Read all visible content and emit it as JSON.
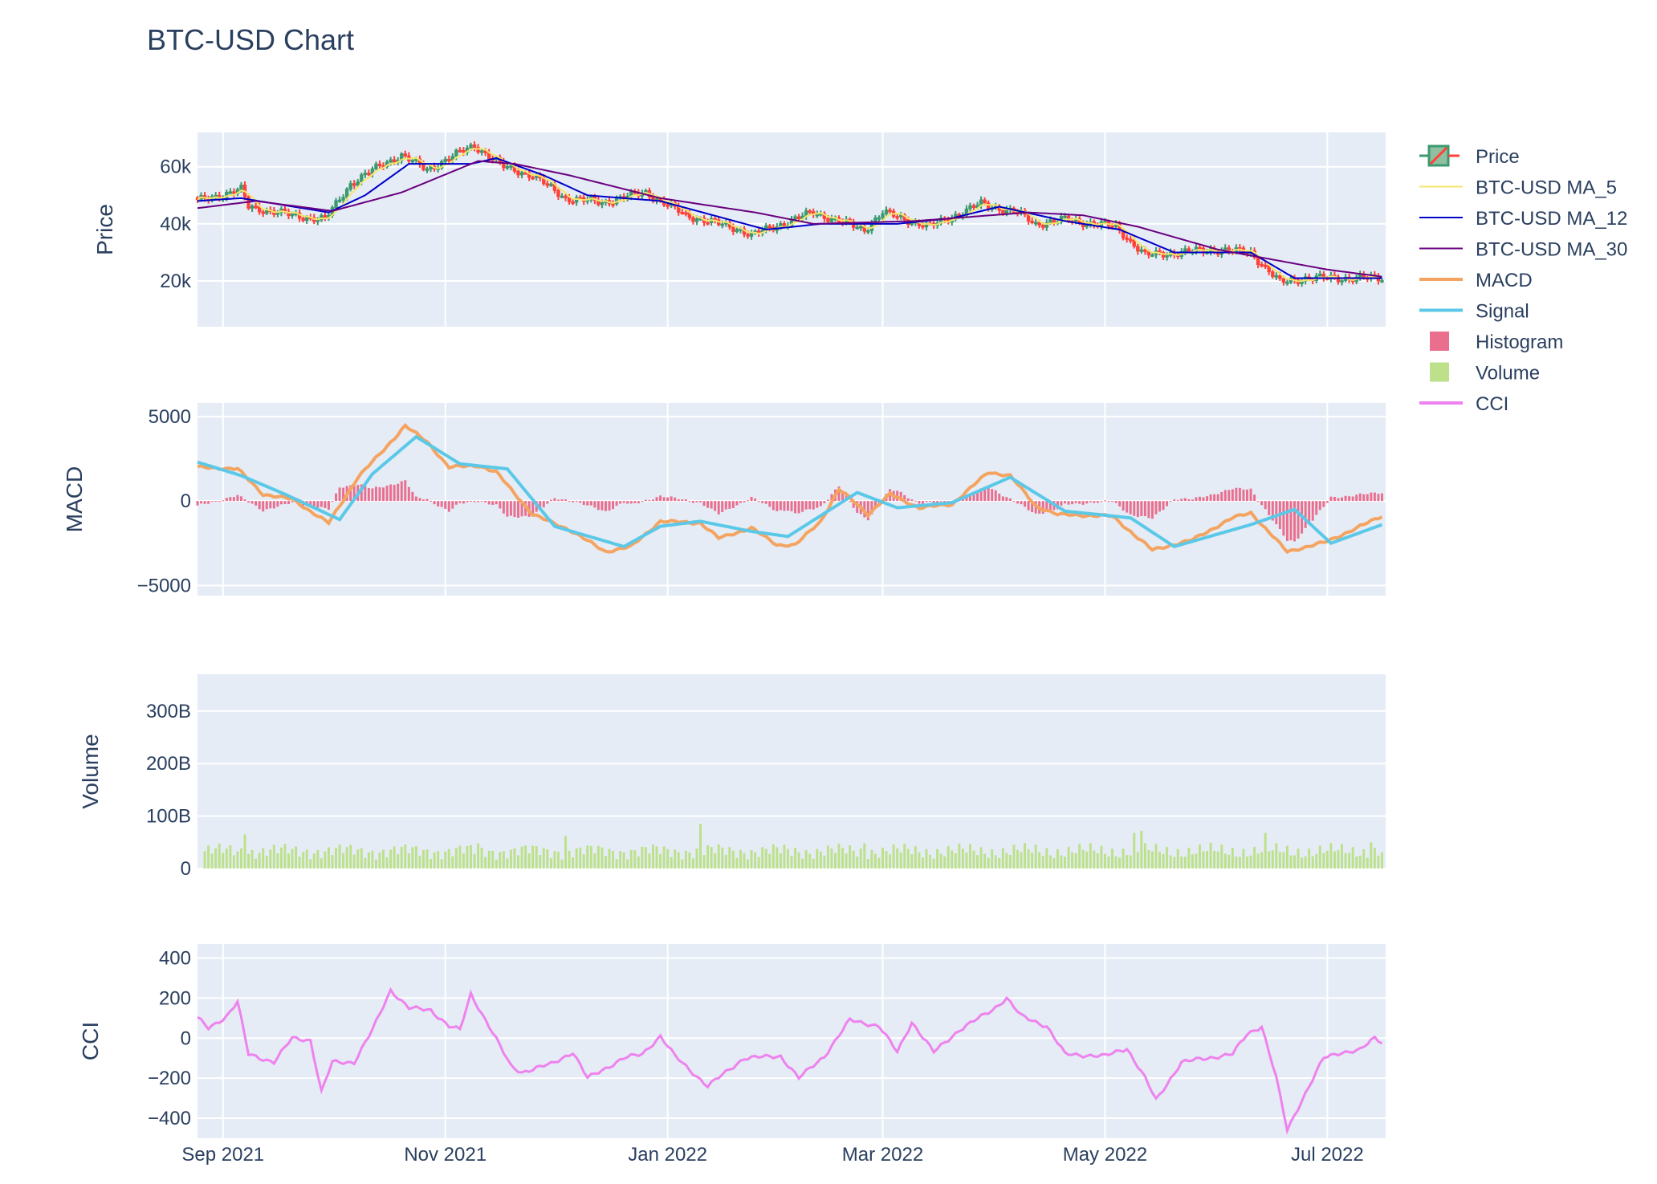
{
  "title": "BTC-USD Chart",
  "legend": {
    "position": "top-right",
    "items": [
      {
        "label": "Price",
        "kind": "candlestick",
        "color_up": "#3d9970",
        "color_down": "#ff4136"
      },
      {
        "label": "BTC-USD MA_5",
        "kind": "line",
        "color": "#f5e66b"
      },
      {
        "label": "BTC-USD MA_12",
        "kind": "line",
        "color": "#0000c8"
      },
      {
        "label": "BTC-USD MA_30",
        "kind": "line",
        "color": "#6a0080"
      },
      {
        "label": "MACD",
        "kind": "line",
        "color": "#f4a460"
      },
      {
        "label": "Signal",
        "kind": "line",
        "color": "#5bc8e8"
      },
      {
        "label": "Histogram",
        "kind": "bar",
        "color": "#ea6f8f"
      },
      {
        "label": "Volume",
        "kind": "bar",
        "color": "#bde18a"
      },
      {
        "label": "CCI",
        "kind": "line",
        "color": "#ee82ee"
      }
    ]
  },
  "chart_data": {
    "type": "line",
    "x_type": "date",
    "x_range": [
      "2021-08-25",
      "2022-07-17"
    ],
    "x_ticks": [
      {
        "date": "2021-09-01",
        "label": "Sep 2021"
      },
      {
        "date": "2021-11-01",
        "label": "Nov 2021"
      },
      {
        "date": "2022-01-01",
        "label": "Jan 2022"
      },
      {
        "date": "2022-03-01",
        "label": "Mar 2022"
      },
      {
        "date": "2022-05-01",
        "label": "May 2022"
      },
      {
        "date": "2022-07-01",
        "label": "Jul 2022"
      }
    ],
    "grid": true,
    "panels": [
      {
        "name": "price",
        "ylabel": "Price",
        "ylim": [
          4000,
          72000
        ],
        "y_ticks": [
          {
            "v": 20000,
            "label": "20k"
          },
          {
            "v": 40000,
            "label": "40k"
          },
          {
            "v": 60000,
            "label": "60k"
          }
        ],
        "price_keypoints": [
          [
            "2021-08-25",
            48000
          ],
          [
            "2021-09-06",
            52000
          ],
          [
            "2021-09-08",
            46000
          ],
          [
            "2021-09-20",
            43000
          ],
          [
            "2021-09-29",
            41500
          ],
          [
            "2021-10-06",
            54000
          ],
          [
            "2021-10-15",
            61000
          ],
          [
            "2021-10-20",
            64000
          ],
          [
            "2021-10-27",
            59000
          ],
          [
            "2021-11-09",
            67500
          ],
          [
            "2021-11-17",
            60000
          ],
          [
            "2021-11-25",
            57000
          ],
          [
            "2021-12-04",
            49000
          ],
          [
            "2021-12-14",
            47500
          ],
          [
            "2021-12-26",
            51000
          ],
          [
            "2022-01-06",
            43000
          ],
          [
            "2022-01-21",
            38000
          ],
          [
            "2022-01-24",
            36000
          ],
          [
            "2022-02-10",
            44000
          ],
          [
            "2022-02-24",
            38000
          ],
          [
            "2022-03-01",
            44000
          ],
          [
            "2022-03-14",
            39000
          ],
          [
            "2022-03-28",
            47000
          ],
          [
            "2022-04-07",
            44000
          ],
          [
            "2022-04-12",
            40000
          ],
          [
            "2022-04-20",
            41500
          ],
          [
            "2022-05-04",
            39000
          ],
          [
            "2022-05-12",
            29000
          ],
          [
            "2022-05-31",
            31000
          ],
          [
            "2022-06-10",
            30000
          ],
          [
            "2022-06-18",
            19500
          ],
          [
            "2022-06-25",
            21000
          ],
          [
            "2022-07-16",
            21000
          ]
        ],
        "ma12_keypoints": [
          [
            "2021-08-25",
            48000
          ],
          [
            "2021-09-06",
            49000
          ],
          [
            "2021-09-30",
            44000
          ],
          [
            "2021-10-10",
            50000
          ],
          [
            "2021-10-22",
            61000
          ],
          [
            "2021-11-08",
            61000
          ],
          [
            "2021-11-15",
            63000
          ],
          [
            "2021-11-28",
            57000
          ],
          [
            "2021-12-10",
            50000
          ],
          [
            "2021-12-30",
            48000
          ],
          [
            "2022-01-28",
            38000
          ],
          [
            "2022-02-12",
            40000
          ],
          [
            "2022-02-25",
            40000
          ],
          [
            "2022-03-05",
            40000
          ],
          [
            "2022-03-20",
            42000
          ],
          [
            "2022-04-02",
            46000
          ],
          [
            "2022-04-20",
            41000
          ],
          [
            "2022-05-05",
            38000
          ],
          [
            "2022-05-20",
            30000
          ],
          [
            "2022-06-10",
            30000
          ],
          [
            "2022-06-22",
            21000
          ],
          [
            "2022-07-16",
            21000
          ]
        ],
        "ma30_keypoints": [
          [
            "2021-08-25",
            45500
          ],
          [
            "2021-09-10",
            48000
          ],
          [
            "2021-10-01",
            44500
          ],
          [
            "2021-10-20",
            51000
          ],
          [
            "2021-11-10",
            62000
          ],
          [
            "2021-11-20",
            61000
          ],
          [
            "2021-12-05",
            57000
          ],
          [
            "2021-12-30",
            49000
          ],
          [
            "2022-01-25",
            44000
          ],
          [
            "2022-02-10",
            40000
          ],
          [
            "2022-03-10",
            41000
          ],
          [
            "2022-04-10",
            44000
          ],
          [
            "2022-04-25",
            43000
          ],
          [
            "2022-05-10",
            39000
          ],
          [
            "2022-06-01",
            31000
          ],
          [
            "2022-07-01",
            24000
          ],
          [
            "2022-07-16",
            21500
          ]
        ]
      },
      {
        "name": "macd",
        "ylabel": "MACD",
        "ylim": [
          -5600,
          5800
        ],
        "y_ticks": [
          {
            "v": 5000,
            "label": "5000"
          },
          {
            "v": 0,
            "label": "0"
          },
          {
            "v": -5000,
            "label": "−5000"
          }
        ],
        "macd_keypoints": [
          [
            "2021-08-25",
            2000
          ],
          [
            "2021-09-05",
            1900
          ],
          [
            "2021-09-12",
            400
          ],
          [
            "2021-09-20",
            100
          ],
          [
            "2021-09-30",
            -1300
          ],
          [
            "2021-10-08",
            1400
          ],
          [
            "2021-10-15",
            3000
          ],
          [
            "2021-10-21",
            4450
          ],
          [
            "2021-10-27",
            3500
          ],
          [
            "2021-11-02",
            2000
          ],
          [
            "2021-11-10",
            2100
          ],
          [
            "2021-11-15",
            1700
          ],
          [
            "2021-11-25",
            -800
          ],
          [
            "2021-12-05",
            -1700
          ],
          [
            "2021-12-15",
            -3000
          ],
          [
            "2021-12-22",
            -2700
          ],
          [
            "2021-12-30",
            -1200
          ],
          [
            "2022-01-10",
            -1300
          ],
          [
            "2022-01-15",
            -2200
          ],
          [
            "2022-01-24",
            -1600
          ],
          [
            "2022-01-31",
            -2600
          ],
          [
            "2022-02-05",
            -2600
          ],
          [
            "2022-02-12",
            -1200
          ],
          [
            "2022-02-17",
            700
          ],
          [
            "2022-02-22",
            -200
          ],
          [
            "2022-02-25",
            -800
          ],
          [
            "2022-03-03",
            400
          ],
          [
            "2022-03-11",
            -400
          ],
          [
            "2022-03-20",
            -200
          ],
          [
            "2022-03-30",
            1700
          ],
          [
            "2022-04-05",
            1500
          ],
          [
            "2022-04-12",
            -300
          ],
          [
            "2022-04-18",
            -800
          ],
          [
            "2022-05-03",
            -900
          ],
          [
            "2022-05-14",
            -2900
          ],
          [
            "2022-05-25",
            -2300
          ],
          [
            "2022-06-05",
            -1000
          ],
          [
            "2022-06-10",
            -700
          ],
          [
            "2022-06-20",
            -3000
          ],
          [
            "2022-07-01",
            -2400
          ],
          [
            "2022-07-16",
            -900
          ]
        ],
        "signal_keypoints": [
          [
            "2021-08-25",
            2300
          ],
          [
            "2021-09-06",
            1500
          ],
          [
            "2021-09-18",
            400
          ],
          [
            "2021-10-03",
            -1100
          ],
          [
            "2021-10-12",
            1600
          ],
          [
            "2021-10-24",
            3800
          ],
          [
            "2021-11-05",
            2200
          ],
          [
            "2021-11-18",
            1900
          ],
          [
            "2021-12-01",
            -1500
          ],
          [
            "2021-12-20",
            -2700
          ],
          [
            "2021-12-30",
            -1500
          ],
          [
            "2022-01-10",
            -1200
          ],
          [
            "2022-01-24",
            -1800
          ],
          [
            "2022-02-03",
            -2100
          ],
          [
            "2022-02-22",
            500
          ],
          [
            "2022-03-05",
            -400
          ],
          [
            "2022-03-20",
            -100
          ],
          [
            "2022-04-05",
            1400
          ],
          [
            "2022-04-20",
            -600
          ],
          [
            "2022-05-08",
            -1000
          ],
          [
            "2022-05-20",
            -2700
          ],
          [
            "2022-06-10",
            -1400
          ],
          [
            "2022-06-22",
            -500
          ],
          [
            "2022-07-02",
            -2500
          ],
          [
            "2022-07-16",
            -1400
          ]
        ]
      },
      {
        "name": "volume",
        "ylabel": "Volume",
        "ylim": [
          0,
          370
        ],
        "y_unit": "B",
        "y_ticks": [
          {
            "v": 0,
            "label": "0"
          },
          {
            "v": 100,
            "label": "100B"
          },
          {
            "v": 200,
            "label": "200B"
          },
          {
            "v": 300,
            "label": "300B"
          }
        ],
        "typical_volume": 33,
        "volume_spikes": [
          [
            "2021-09-07",
            65
          ],
          [
            "2021-11-10",
            48
          ],
          [
            "2021-12-04",
            62
          ],
          [
            "2022-01-10",
            85
          ],
          [
            "2022-02-24",
            48
          ],
          [
            "2022-05-09",
            68
          ],
          [
            "2022-05-11",
            72
          ],
          [
            "2022-06-14",
            68
          ],
          [
            "2022-07-13",
            50
          ]
        ]
      },
      {
        "name": "cci",
        "ylabel": "CCI",
        "ylim": [
          -500,
          470
        ],
        "y_ticks": [
          {
            "v": 400,
            "label": "400"
          },
          {
            "v": 200,
            "label": "200"
          },
          {
            "v": 0,
            "label": "0"
          },
          {
            "v": -200,
            "label": "−200"
          },
          {
            "v": -400,
            "label": "−400"
          }
        ],
        "cci_keypoints": [
          [
            "2021-08-25",
            100
          ],
          [
            "2021-08-28",
            50
          ],
          [
            "2021-09-02",
            110
          ],
          [
            "2021-09-05",
            180
          ],
          [
            "2021-09-08",
            -80
          ],
          [
            "2021-09-15",
            -120
          ],
          [
            "2021-09-20",
            0
          ],
          [
            "2021-09-25",
            -10
          ],
          [
            "2021-09-28",
            -270
          ],
          [
            "2021-10-01",
            -120
          ],
          [
            "2021-10-07",
            -120
          ],
          [
            "2021-10-12",
            40
          ],
          [
            "2021-10-17",
            240
          ],
          [
            "2021-10-22",
            150
          ],
          [
            "2021-10-28",
            140
          ],
          [
            "2021-11-02",
            60
          ],
          [
            "2021-11-05",
            40
          ],
          [
            "2021-11-08",
            220
          ],
          [
            "2021-11-13",
            60
          ],
          [
            "2021-11-19",
            -140
          ],
          [
            "2021-11-22",
            -170
          ],
          [
            "2021-11-30",
            -130
          ],
          [
            "2021-12-06",
            -70
          ],
          [
            "2021-12-10",
            -200
          ],
          [
            "2021-12-20",
            -100
          ],
          [
            "2021-12-25",
            -80
          ],
          [
            "2021-12-30",
            10
          ],
          [
            "2022-01-03",
            -90
          ],
          [
            "2022-01-12",
            -240
          ],
          [
            "2022-01-22",
            -100
          ],
          [
            "2022-02-01",
            -90
          ],
          [
            "2022-02-06",
            -200
          ],
          [
            "2022-02-13",
            -90
          ],
          [
            "2022-02-20",
            90
          ],
          [
            "2022-02-28",
            60
          ],
          [
            "2022-03-05",
            -70
          ],
          [
            "2022-03-09",
            80
          ],
          [
            "2022-03-15",
            -70
          ],
          [
            "2022-03-22",
            40
          ],
          [
            "2022-03-31",
            140
          ],
          [
            "2022-04-04",
            200
          ],
          [
            "2022-04-08",
            110
          ],
          [
            "2022-04-15",
            60
          ],
          [
            "2022-04-20",
            -80
          ],
          [
            "2022-05-01",
            -90
          ],
          [
            "2022-05-07",
            -50
          ],
          [
            "2022-05-12",
            -200
          ],
          [
            "2022-05-15",
            -310
          ],
          [
            "2022-05-22",
            -120
          ],
          [
            "2022-06-05",
            -80
          ],
          [
            "2022-06-09",
            20
          ],
          [
            "2022-06-13",
            60
          ],
          [
            "2022-06-17",
            -200
          ],
          [
            "2022-06-20",
            -460
          ],
          [
            "2022-06-24",
            -310
          ],
          [
            "2022-06-30",
            -100
          ],
          [
            "2022-07-05",
            -70
          ],
          [
            "2022-07-10",
            -60
          ],
          [
            "2022-07-14",
            0
          ],
          [
            "2022-07-16",
            -20
          ]
        ]
      }
    ]
  }
}
